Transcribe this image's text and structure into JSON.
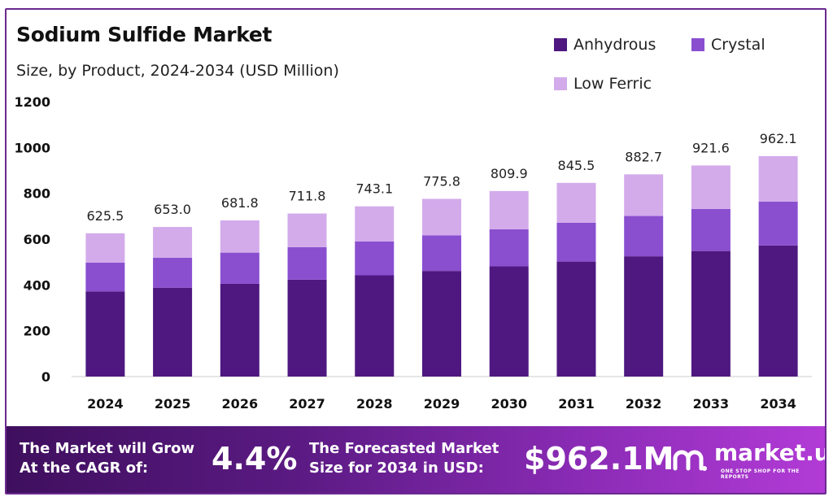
{
  "title": "Sodium Sulfide Market",
  "subtitle": "Size, by Product, 2024-2034 (USD Million)",
  "colors": {
    "anhydrous": "#4e1880",
    "crystal": "#8a4fcf",
    "low_ferric": "#d3abeb",
    "axis": "#cccccc"
  },
  "chart_data": {
    "type": "bar",
    "stacked": true,
    "title": "Sodium Sulfide Market",
    "subtitle": "Size, by Product, 2024-2034 (USD Million)",
    "categories": [
      "2024",
      "2025",
      "2026",
      "2027",
      "2028",
      "2029",
      "2030",
      "2031",
      "2032",
      "2033",
      "2034"
    ],
    "series": [
      {
        "name": "Anhydrous",
        "color": "#4e1880",
        "values": [
          372,
          388,
          405,
          423,
          442,
          461,
          481,
          502,
          525,
          548,
          572
        ]
      },
      {
        "name": "Crystal",
        "color": "#8a4fcf",
        "values": [
          125,
          131,
          136,
          142,
          148,
          155,
          162,
          169,
          176,
          184,
          192
        ]
      },
      {
        "name": "Low Ferric",
        "color": "#d3abeb",
        "values": [
          128.5,
          134.0,
          140.8,
          146.8,
          153.1,
          159.8,
          166.9,
          174.5,
          181.7,
          189.6,
          198.1
        ]
      }
    ],
    "totals": [
      625.5,
      653.0,
      681.8,
      711.8,
      743.1,
      775.8,
      809.9,
      845.5,
      882.7,
      921.6,
      962.1
    ],
    "total_labels": [
      "625.5",
      "653.0",
      "681.8",
      "711.8",
      "743.1",
      "775.8",
      "809.9",
      "845.5",
      "882.7",
      "921.6",
      "962.1"
    ],
    "yticks": [
      0,
      200,
      400,
      600,
      800,
      1000,
      1200
    ],
    "ylim": [
      0,
      1200
    ],
    "legend": "top-right",
    "grid": false
  },
  "banner": {
    "cagr_label_line1": "The Market will Grow",
    "cagr_label_line2": "At the CAGR of:",
    "cagr_value": "4.4%",
    "forecast_label_line1": "The Forecasted Market",
    "forecast_label_line2": "Size for 2034 in USD:",
    "forecast_value": "$962.1M",
    "logo_text": "market.us",
    "logo_tagline": "ONE STOP SHOP FOR THE REPORTS"
  }
}
